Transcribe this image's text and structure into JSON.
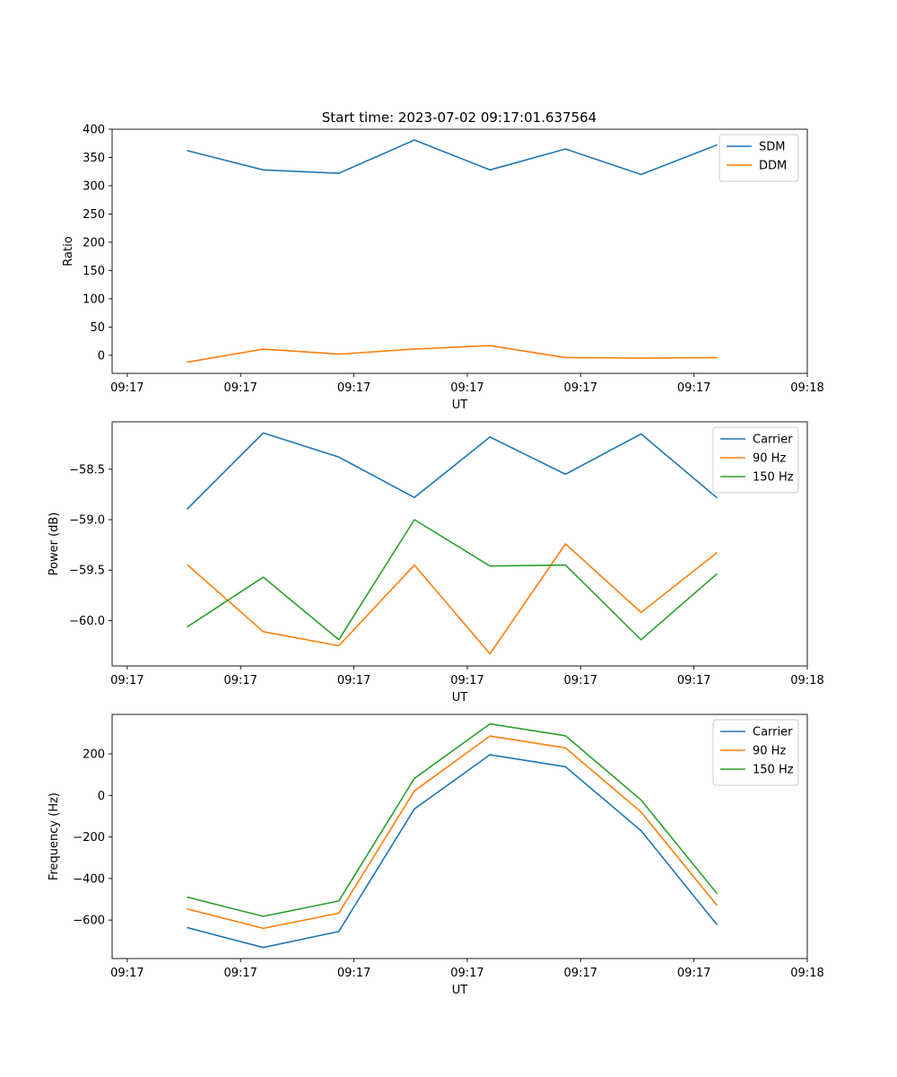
{
  "figure": {
    "title": "Start time: 2023-07-02 09:17:01.637564"
  },
  "chart_data": [
    {
      "type": "line",
      "title": "Start time: 2023-07-02 09:17:01.637564",
      "xlabel": "UT",
      "ylabel": "Ratio",
      "x": [
        1.0,
        2.0,
        3.0,
        4.0,
        5.0,
        6.0,
        7.0,
        8.0
      ],
      "xlim": [
        0.0,
        9.2
      ],
      "xticks": [
        0.2,
        1.7,
        3.2,
        4.7,
        6.2,
        7.7,
        9.2
      ],
      "xticklabels": [
        "09:17",
        "09:17",
        "09:17",
        "09:17",
        "09:17",
        "09:17",
        "09:18"
      ],
      "ylim": [
        -32,
        400
      ],
      "yticks": [
        0,
        50,
        100,
        150,
        200,
        250,
        300,
        350,
        400
      ],
      "yticklabels": [
        "0",
        "50",
        "100",
        "150",
        "200",
        "250",
        "300",
        "350",
        "400"
      ],
      "legend_position": "top-right",
      "series": [
        {
          "name": "SDM",
          "color": "#1f77b4",
          "values": [
            362,
            328,
            322,
            381,
            328,
            365,
            320,
            372
          ]
        },
        {
          "name": "DDM",
          "color": "#ff7f0e",
          "values": [
            -12,
            11,
            2,
            11,
            17,
            -4,
            -5,
            -4
          ]
        }
      ]
    },
    {
      "type": "line",
      "xlabel": "UT",
      "ylabel": "Power (dB)",
      "x": [
        1.0,
        2.0,
        3.0,
        4.0,
        5.0,
        6.0,
        7.0,
        8.0
      ],
      "xlim": [
        0.0,
        9.2
      ],
      "xticks": [
        0.2,
        1.7,
        3.2,
        4.7,
        6.2,
        7.7,
        9.2
      ],
      "xticklabels": [
        "09:17",
        "09:17",
        "09:17",
        "09:17",
        "09:17",
        "09:17",
        "09:18"
      ],
      "ylim": [
        -60.45,
        -58.03
      ],
      "yticks": [
        -60.0,
        -59.5,
        -59.0,
        -58.5
      ],
      "yticklabels": [
        "−60.0",
        "−59.5",
        "−59.0",
        "−58.5"
      ],
      "legend_position": "top-right",
      "series": [
        {
          "name": "Carrier",
          "color": "#1f77b4",
          "values": [
            -58.89,
            -58.14,
            -58.38,
            -58.78,
            -58.18,
            -58.55,
            -58.15,
            -58.78
          ]
        },
        {
          "name": "90 Hz",
          "color": "#ff7f0e",
          "values": [
            -59.45,
            -60.11,
            -60.25,
            -59.45,
            -60.33,
            -59.24,
            -59.92,
            -59.33
          ]
        },
        {
          "name": "150 Hz",
          "color": "#2ca02c",
          "values": [
            -60.06,
            -59.57,
            -60.19,
            -59.0,
            -59.46,
            -59.45,
            -60.19,
            -59.54
          ]
        }
      ]
    },
    {
      "type": "line",
      "xlabel": "UT",
      "ylabel": "Frequency (Hz)",
      "x": [
        1.0,
        2.0,
        3.0,
        4.0,
        5.0,
        6.0,
        7.0,
        8.0
      ],
      "xlim": [
        0.0,
        9.2
      ],
      "xticks": [
        0.2,
        1.7,
        3.2,
        4.7,
        6.2,
        7.7,
        9.2
      ],
      "xticklabels": [
        "09:17",
        "09:17",
        "09:17",
        "09:17",
        "09:17",
        "09:17",
        "09:18"
      ],
      "ylim": [
        -785,
        390
      ],
      "yticks": [
        -600,
        -400,
        -200,
        0,
        200
      ],
      "yticklabels": [
        "−600",
        "−400",
        "−200",
        "0",
        "200"
      ],
      "legend_position": "top-right",
      "series": [
        {
          "name": "Carrier",
          "color": "#1f77b4",
          "values": [
            -637,
            -732,
            -655,
            -65,
            196,
            138,
            -170,
            -620
          ]
        },
        {
          "name": "90 Hz",
          "color": "#ff7f0e",
          "values": [
            -547,
            -640,
            -567,
            22,
            286,
            229,
            -80,
            -527
          ]
        },
        {
          "name": "150 Hz",
          "color": "#2ca02c",
          "values": [
            -490,
            -582,
            -508,
            82,
            344,
            287,
            -22,
            -470
          ]
        }
      ]
    }
  ]
}
